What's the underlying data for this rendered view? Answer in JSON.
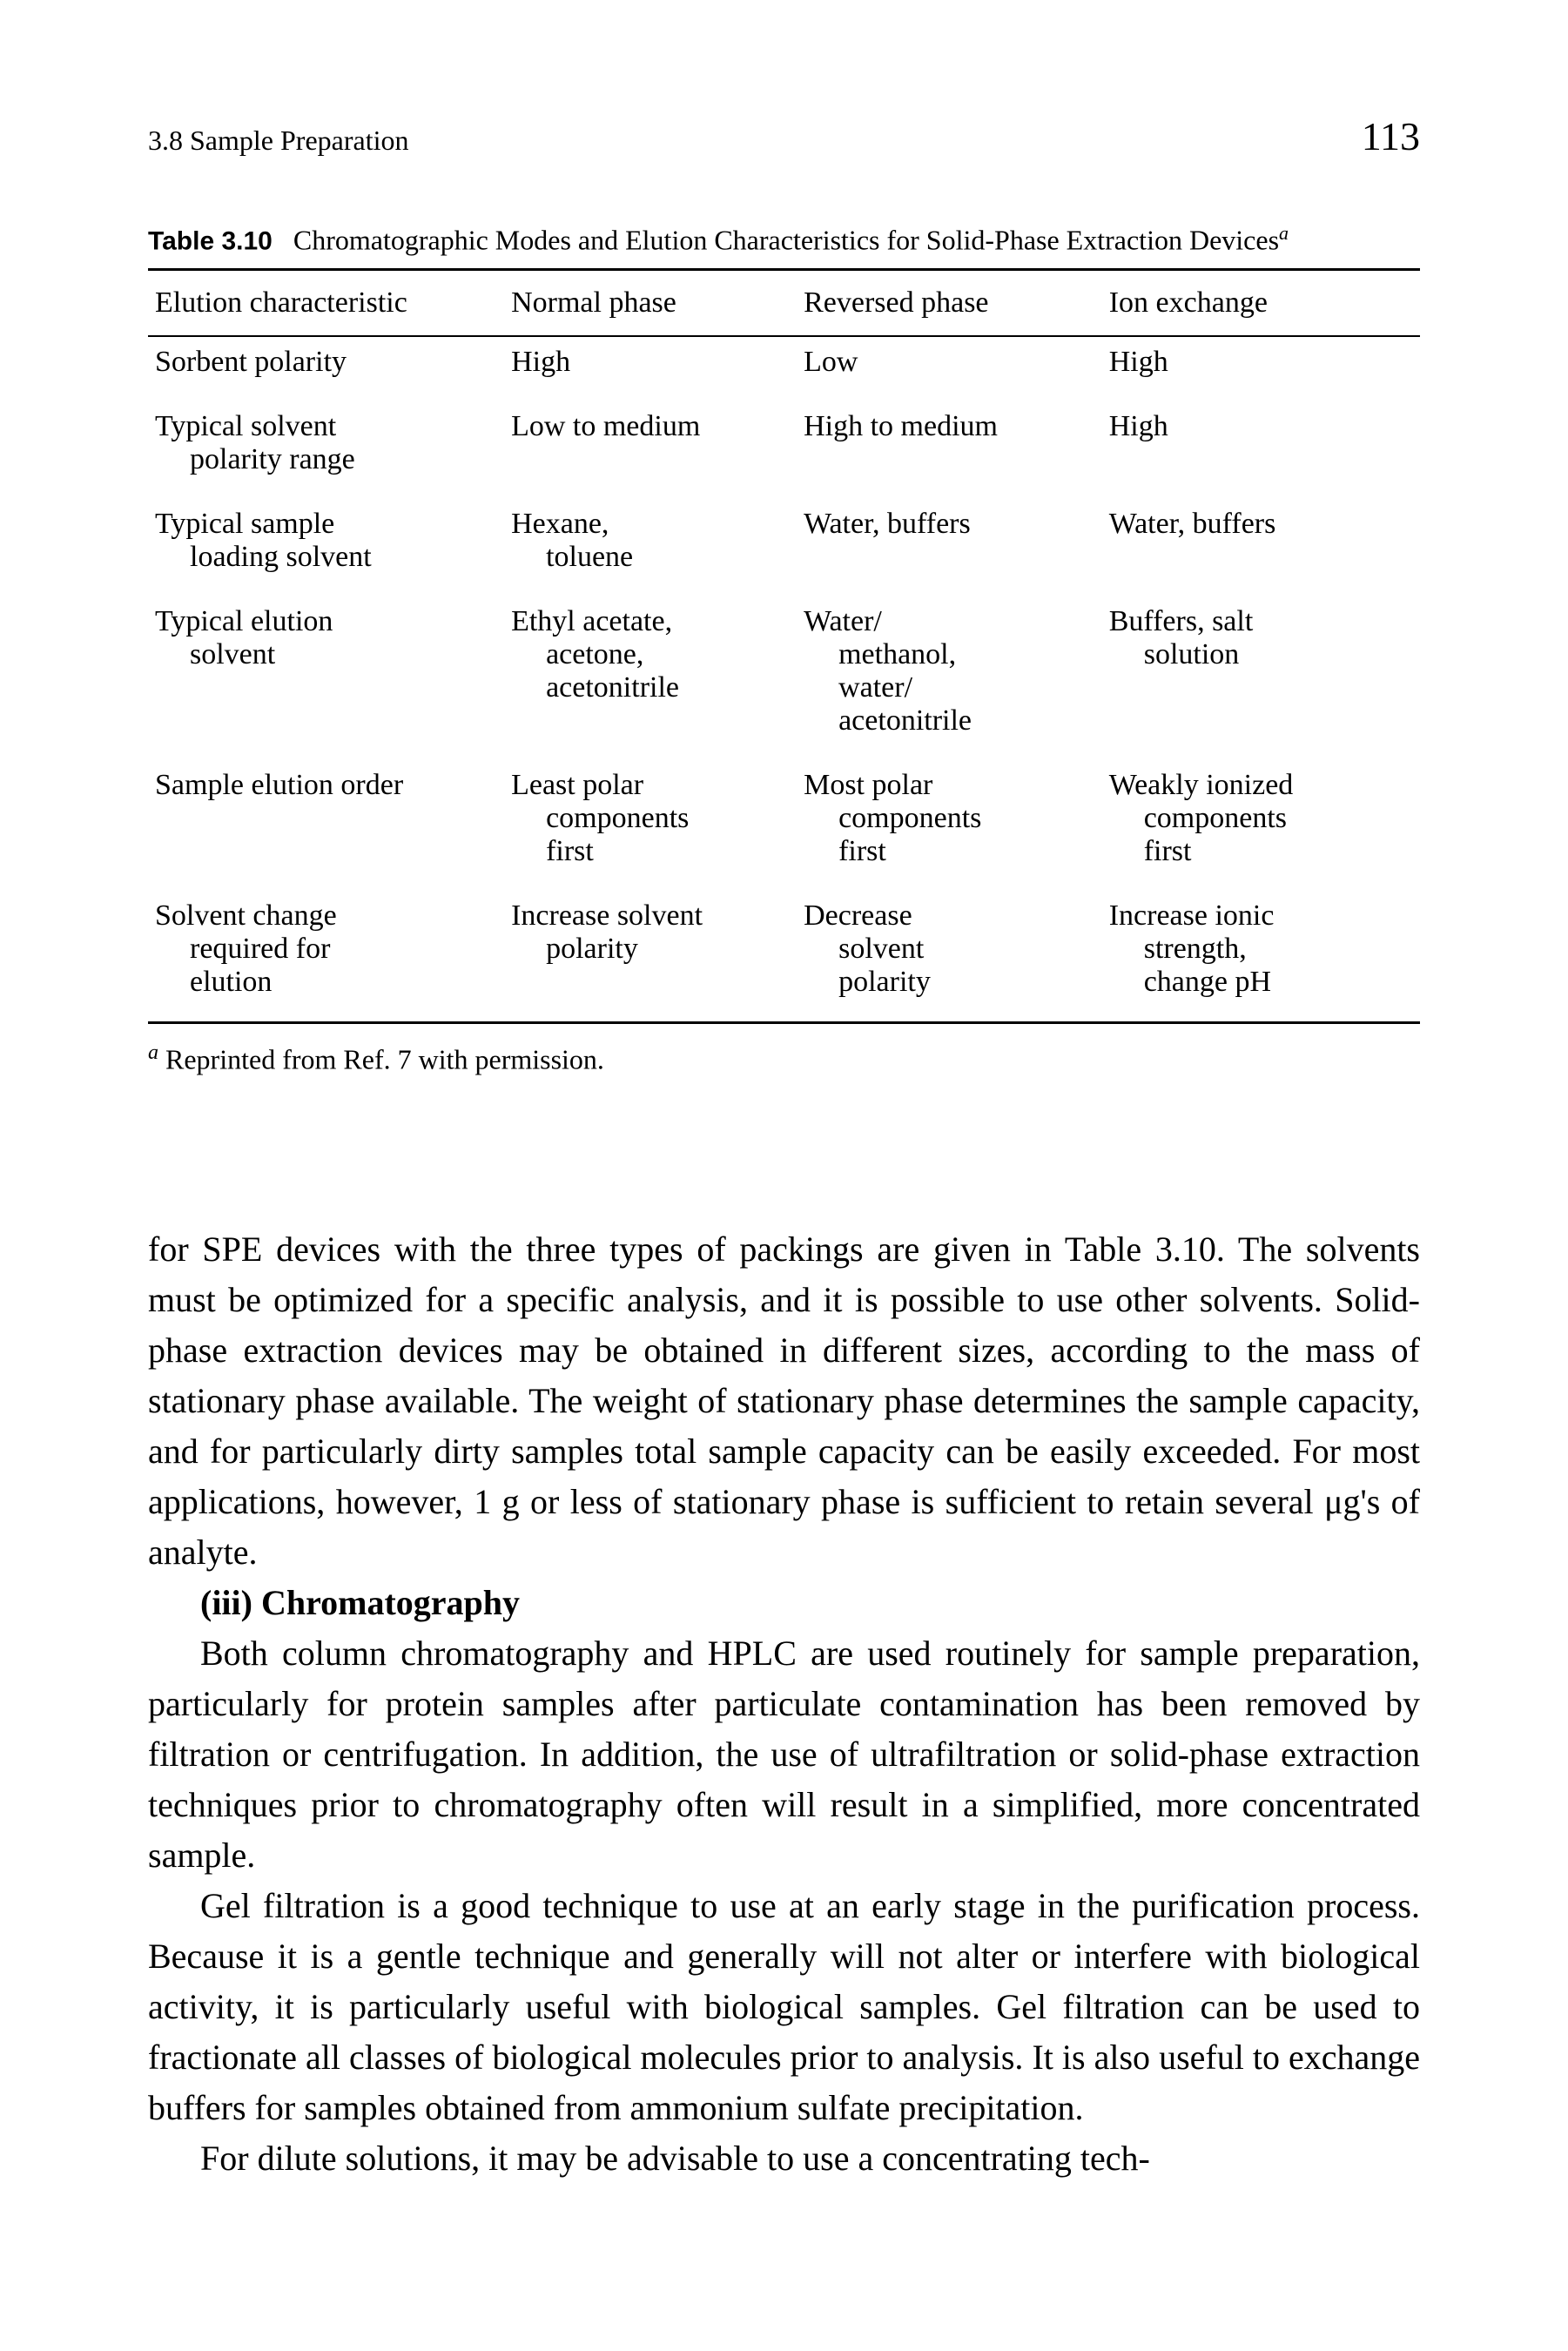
{
  "header": {
    "section": "3.8  Sample Preparation",
    "page_number": "113"
  },
  "table": {
    "caption_label": "Table 3.10",
    "caption_text": "Chromatographic Modes and Elution Characteristics for Solid-Phase Extraction Devices",
    "caption_sup": "a",
    "columns": [
      "Elution characteristic",
      "Normal phase",
      "Reversed phase",
      "Ion exchange"
    ],
    "rows": [
      {
        "c0": "Sorbent polarity",
        "c1": "High",
        "c2": "Low",
        "c3": "High"
      },
      {
        "c0_line1": "Typical solvent",
        "c0_line2": "polarity range",
        "c1": "Low to medium",
        "c2": "High to medium",
        "c3": "High"
      },
      {
        "c0_line1": "Typical sample",
        "c0_line2": "loading solvent",
        "c1_line1": "Hexane,",
        "c1_line2": "toluene",
        "c2": "Water, buffers",
        "c3": "Water, buffers"
      },
      {
        "c0_line1": "Typical elution",
        "c0_line2": "solvent",
        "c1_line1": "Ethyl acetate,",
        "c1_line2": "acetone,",
        "c1_line3": "acetonitrile",
        "c2_line1": "Water/",
        "c2_line2": "methanol,",
        "c2_line3": "water/",
        "c2_line4": "acetonitrile",
        "c3_line1": "Buffers, salt",
        "c3_line2": "solution"
      },
      {
        "c0": "Sample elution order",
        "c1_line1": "Least polar",
        "c1_line2": "components",
        "c1_line3": "first",
        "c2_line1": "Most polar",
        "c2_line2": "components",
        "c2_line3": "first",
        "c3_line1": "Weakly ionized",
        "c3_line2": "components",
        "c3_line3": "first"
      },
      {
        "c0_line1": "Solvent change",
        "c0_line2": "required for",
        "c0_line3": "elution",
        "c1_line1": "Increase solvent",
        "c1_line2": "polarity",
        "c2_line1": "Decrease",
        "c2_line2": "solvent",
        "c2_line3": "polarity",
        "c3_line1": "Increase ionic",
        "c3_line2": "strength,",
        "c3_line3": "change pH"
      }
    ],
    "footnote_sup": "a",
    "footnote_text": " Reprinted from Ref. 7 with permission."
  },
  "body": {
    "p1": "for SPE devices with the three types of packings are given in Table 3.10. The solvents must be optimized for a specific analysis, and it is possible to use other solvents. Solid-phase extraction devices may be obtained in different sizes, according to the mass of stationary phase available. The weight of stationary phase determines the sample capacity, and for particularly dirty samples total sample capacity can be easily exceeded. For most applications, however, 1 g or less of stationary phase is sufficient to retain several μg's of analyte.",
    "h1": "(iii)  Chromatography",
    "p2": "Both column chromatography and HPLC are used routinely for sample preparation, particularly for protein samples after particulate contamination has been removed by filtration or centrifugation. In addition, the use of ultrafiltration or solid-phase extraction techniques prior to chromatography often will result in a simplified, more concentrated sample.",
    "p3": "Gel filtration is a good technique to use at an early stage in the purification process. Because it is a gentle technique and generally will not alter or interfere with biological activity, it is particularly useful with biological samples. Gel filtration can be used to fractionate all classes of biological molecules prior to analysis. It is also useful to exchange buffers for samples obtained from ammonium sulfate precipitation.",
    "p4": "For dilute solutions, it may be advisable to use a concentrating tech-"
  }
}
